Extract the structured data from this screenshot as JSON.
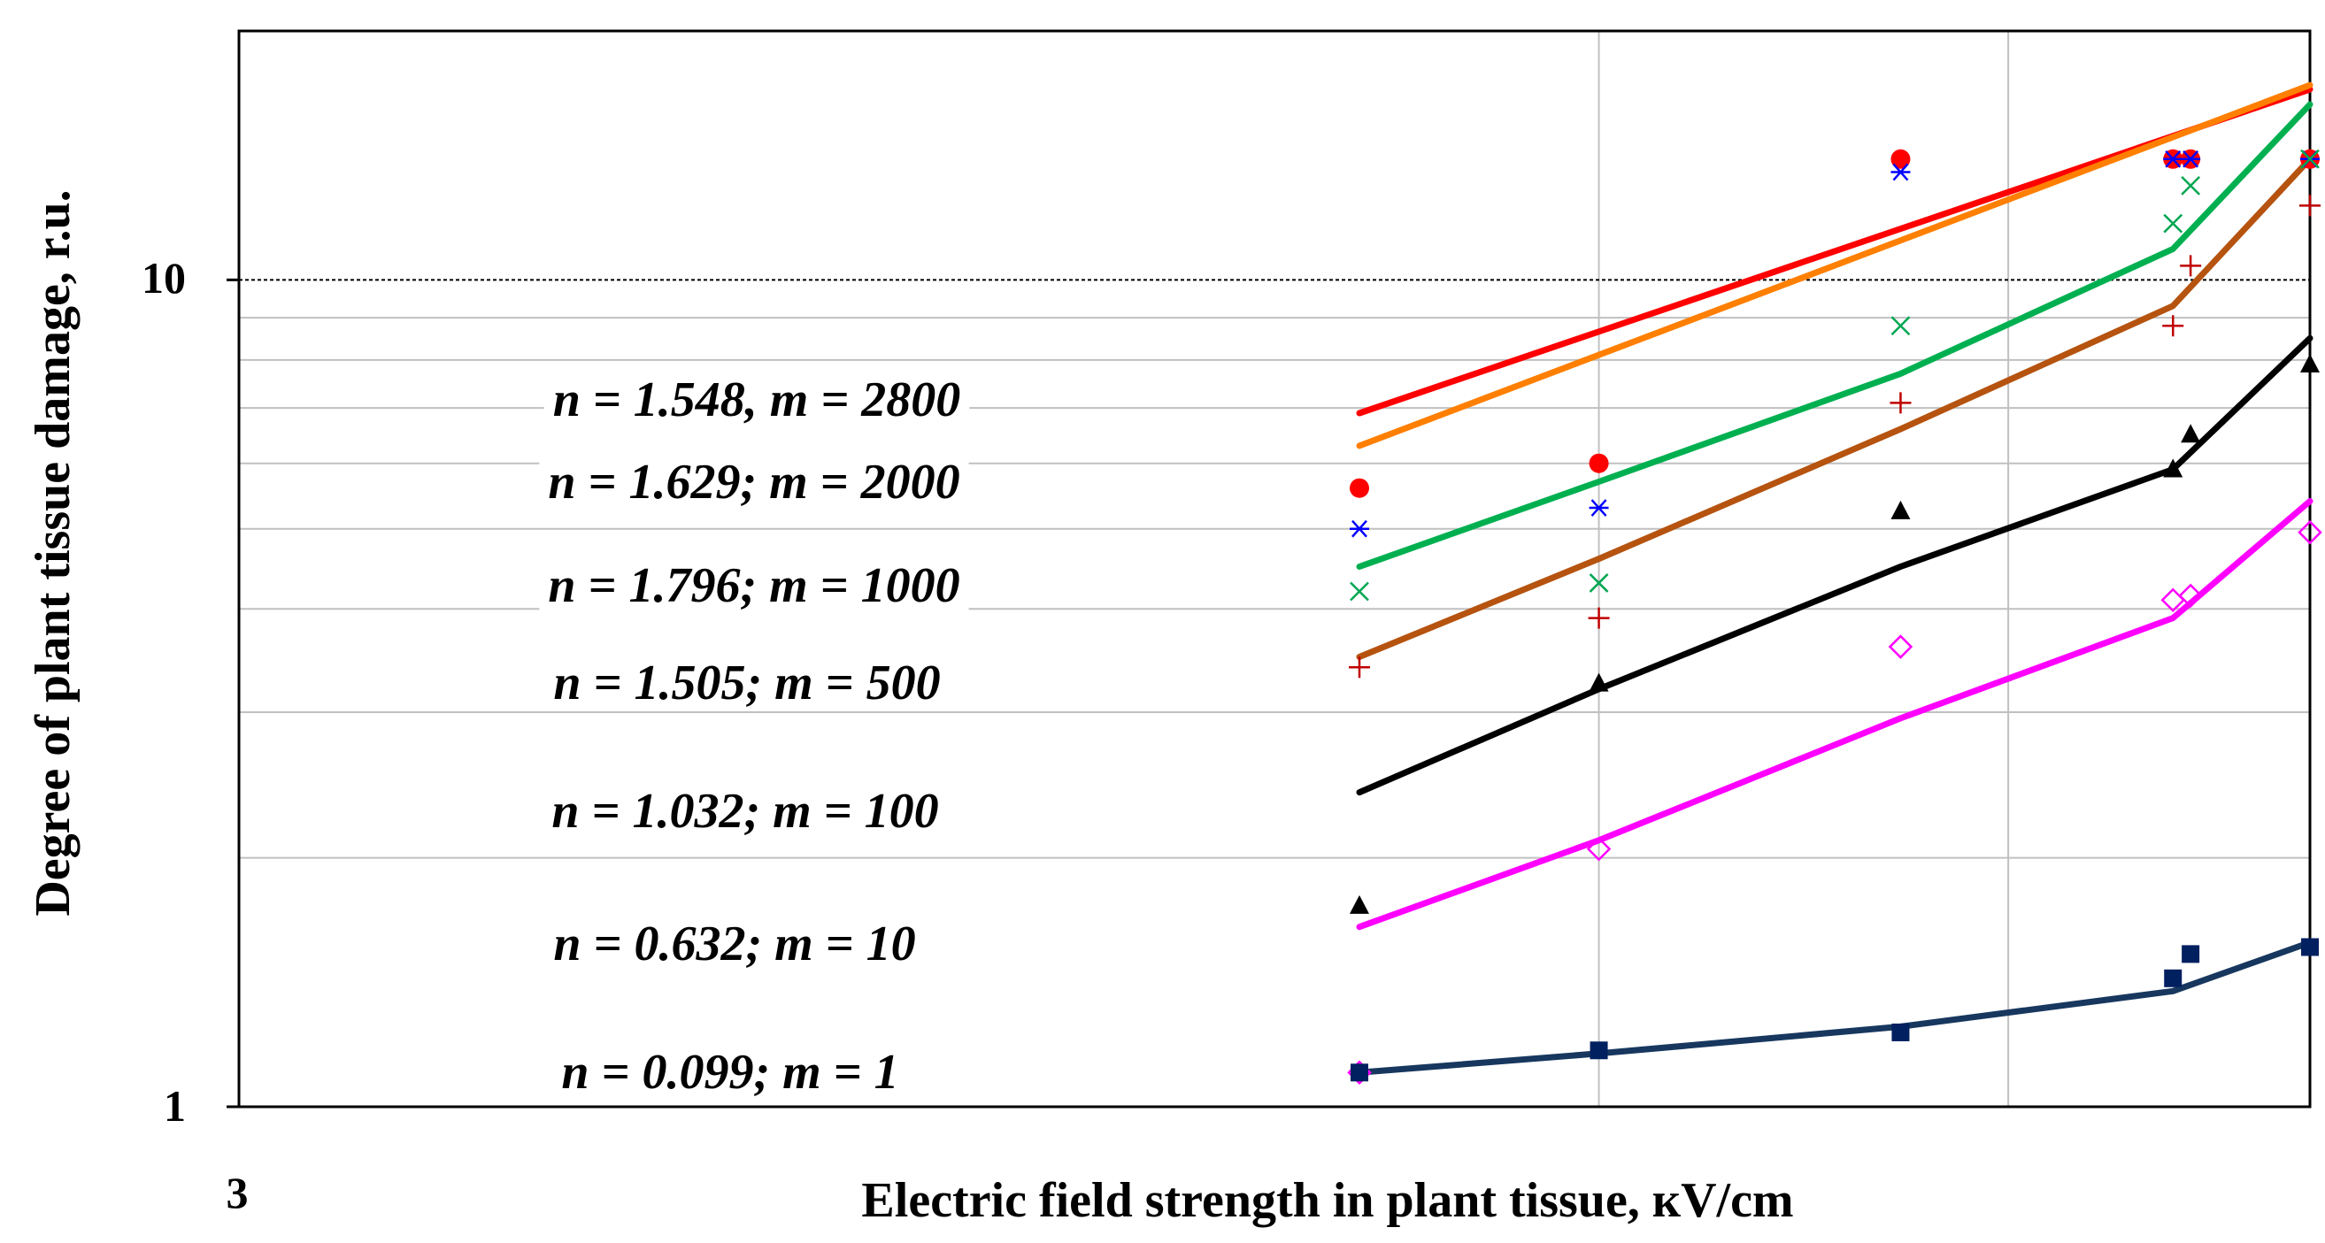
{
  "chart_data": {
    "type": "scatter",
    "title": "",
    "xlabel": "Electric field strength in plant tissue, кV/cm",
    "ylabel": "Degree of plant tissue damage, r.u.",
    "x_scale": "log",
    "y_scale": "log",
    "xlim": [
      3,
      100
    ],
    "ylim": [
      1,
      20
    ],
    "x_tick_labels": [
      "3"
    ],
    "y_tick_labels": [
      "1",
      "10"
    ],
    "grid": true,
    "series": [
      {
        "color": "#ff0000",
        "marker": "circle",
        "line_color": "#ff0000",
        "points": [
          [
            20,
            5.6
          ],
          [
            30,
            6.0
          ],
          [
            50,
            14.0
          ],
          [
            79.3,
            14.0
          ],
          [
            81.7,
            14.0
          ],
          [
            100,
            14.0
          ]
        ],
        "fit": [
          [
            20,
            6.9
          ],
          [
            100,
            17.0
          ]
        ]
      },
      {
        "color": "#ff7f00",
        "marker": "none",
        "line_color": "#ff7f00",
        "points": [],
        "fit": [
          [
            20,
            6.3
          ],
          [
            100,
            17.2
          ]
        ]
      },
      {
        "color": "#0000ff",
        "marker": "asterisk",
        "points": [
          [
            20,
            5.0
          ],
          [
            30,
            5.3
          ],
          [
            50,
            13.5
          ],
          [
            79.3,
            14.0
          ],
          [
            81.7,
            14.0
          ],
          [
            100,
            14.0
          ]
        ]
      },
      {
        "color": "#00a651",
        "marker": "x",
        "line_color": "#00b050",
        "points": [
          [
            20,
            4.2
          ],
          [
            30,
            4.3
          ],
          [
            50,
            8.8
          ],
          [
            79.3,
            11.7
          ],
          [
            81.7,
            13.0
          ],
          [
            100,
            14.0
          ]
        ],
        "fit": [
          [
            20,
            4.5
          ],
          [
            30,
            5.7
          ],
          [
            50,
            7.7
          ],
          [
            79.3,
            10.9
          ],
          [
            100,
            16.3
          ]
        ]
      },
      {
        "color": "#c00000",
        "marker": "plus",
        "line_color": "#b5530f",
        "points": [
          [
            20,
            3.4
          ],
          [
            30,
            3.9
          ],
          [
            50,
            7.1
          ],
          [
            79.3,
            8.8
          ],
          [
            81.7,
            10.4
          ],
          [
            100,
            12.3
          ]
        ],
        "fit": [
          [
            20,
            3.5
          ],
          [
            30,
            4.6
          ],
          [
            50,
            6.6
          ],
          [
            79.3,
            9.3
          ],
          [
            100,
            14.0
          ]
        ]
      },
      {
        "color": "#000000",
        "marker": "triangle",
        "line_color": "#000000",
        "points": [
          [
            20,
            1.75
          ],
          [
            30,
            3.25
          ],
          [
            50,
            5.25
          ],
          [
            79.3,
            5.9
          ],
          [
            81.7,
            6.5
          ],
          [
            100,
            7.9
          ]
        ],
        "fit": [
          [
            20,
            2.4
          ],
          [
            30,
            3.2
          ],
          [
            50,
            4.5
          ],
          [
            79.3,
            5.9
          ],
          [
            100,
            8.5
          ]
        ]
      },
      {
        "color": "#ff00ff",
        "marker": "diamond-open",
        "line_color": "#ff00ff",
        "points": [
          [
            20,
            1.1
          ],
          [
            30,
            2.05
          ],
          [
            50,
            3.6
          ],
          [
            79.3,
            4.1
          ],
          [
            81.7,
            4.15
          ],
          [
            100,
            4.95
          ]
        ],
        "fit": [
          [
            20,
            1.65
          ],
          [
            30,
            2.1
          ],
          [
            50,
            2.95
          ],
          [
            79.3,
            3.9
          ],
          [
            100,
            5.4
          ]
        ]
      },
      {
        "color": "#002060",
        "marker": "square",
        "line_color": "#17375e",
        "points": [
          [
            20,
            1.1
          ],
          [
            30,
            1.17
          ],
          [
            50,
            1.23
          ],
          [
            79.3,
            1.43
          ],
          [
            81.7,
            1.53
          ],
          [
            100,
            1.56
          ]
        ],
        "fit": [
          [
            20,
            1.1
          ],
          [
            30,
            1.16
          ],
          [
            50,
            1.25
          ],
          [
            79.3,
            1.38
          ],
          [
            100,
            1.58
          ]
        ]
      }
    ],
    "annotations": [
      "n = 1.548, m = 2800",
      "n = 1.629; m = 2000",
      "n = 1.796; m = 1000",
      "n = 1.505; m = 500",
      "n = 1.032; m = 100",
      "n = 0.632; m = 10",
      "n = 0.099; m = 1"
    ]
  }
}
